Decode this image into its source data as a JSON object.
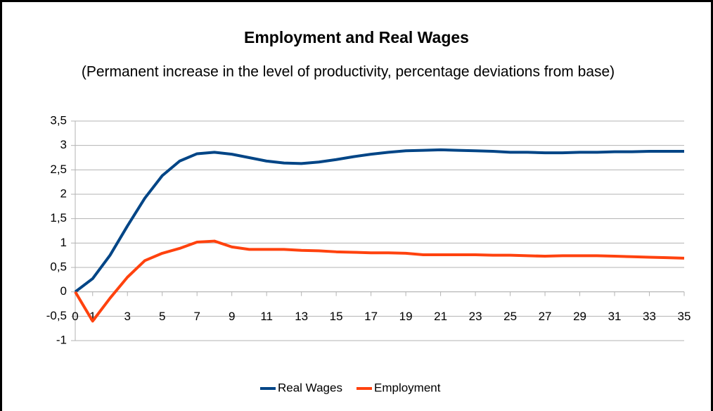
{
  "chart_data": {
    "type": "line",
    "title": "Employment and Real Wages",
    "subtitle": "(Permanent increase in the level of productivity, percentage deviations from base)",
    "x": [
      0,
      1,
      2,
      3,
      4,
      5,
      6,
      7,
      8,
      9,
      10,
      11,
      12,
      13,
      14,
      15,
      16,
      17,
      18,
      19,
      20,
      21,
      22,
      23,
      24,
      25,
      26,
      27,
      28,
      29,
      30,
      31,
      32,
      33,
      34,
      35
    ],
    "xlim": [
      0,
      35
    ],
    "xticks": [
      0,
      1,
      3,
      5,
      7,
      9,
      11,
      13,
      15,
      17,
      19,
      21,
      23,
      25,
      27,
      29,
      31,
      33,
      35
    ],
    "ylim": [
      -1,
      3.5
    ],
    "yticks": [
      {
        "value": 3.5,
        "label": "3,5"
      },
      3,
      {
        "value": 2.5,
        "label": "2,5"
      },
      2,
      {
        "value": 1.5,
        "label": "1,5"
      },
      1,
      {
        "value": 0.5,
        "label": "0,5"
      },
      0,
      {
        "value": -0.5,
        "label": "-0,5"
      },
      -1
    ],
    "grid": true,
    "legend": "bottom",
    "series": [
      {
        "name": "Real Wages",
        "color": "#004586",
        "values": [
          0,
          0.27,
          0.75,
          1.35,
          1.92,
          2.38,
          2.68,
          2.83,
          2.86,
          2.82,
          2.75,
          2.68,
          2.64,
          2.63,
          2.66,
          2.71,
          2.77,
          2.82,
          2.86,
          2.89,
          2.9,
          2.91,
          2.9,
          2.89,
          2.88,
          2.86,
          2.86,
          2.85,
          2.85,
          2.86,
          2.86,
          2.87,
          2.87,
          2.88,
          2.88,
          2.88
        ]
      },
      {
        "name": "Employment",
        "color": "#ff420e",
        "values": [
          0,
          -0.6,
          -0.13,
          0.3,
          0.64,
          0.79,
          0.89,
          1.02,
          1.04,
          0.92,
          0.87,
          0.87,
          0.87,
          0.85,
          0.84,
          0.82,
          0.81,
          0.8,
          0.8,
          0.79,
          0.76,
          0.76,
          0.76,
          0.76,
          0.75,
          0.75,
          0.74,
          0.73,
          0.74,
          0.74,
          0.74,
          0.73,
          0.72,
          0.71,
          0.7,
          0.69
        ]
      }
    ]
  }
}
